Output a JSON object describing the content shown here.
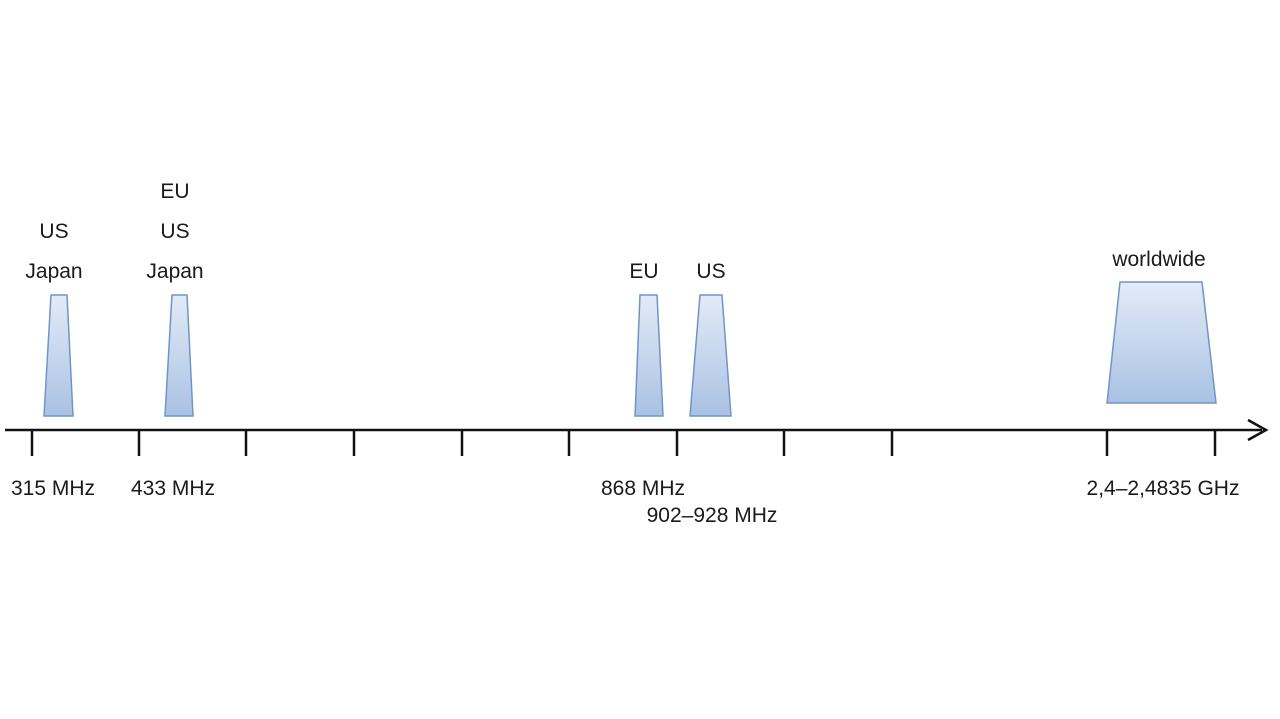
{
  "colors": {
    "band_fill_top": "#e3ebf7",
    "band_fill_bottom": "#a9c1e3",
    "band_stroke": "#6f95c8",
    "axis": "#111111"
  },
  "bands": [
    {
      "regions": [
        "US",
        "Japan"
      ],
      "frequency": "315 MHz"
    },
    {
      "regions": [
        "EU",
        "US",
        "Japan"
      ],
      "frequency": "433 MHz"
    },
    {
      "regions": [
        "EU"
      ],
      "frequency": "868 MHz"
    },
    {
      "regions": [
        "US"
      ],
      "frequency": "902–928 MHz"
    },
    {
      "regions": [
        "worldwide"
      ],
      "frequency": "2,4–2,4835 GHz"
    }
  ]
}
